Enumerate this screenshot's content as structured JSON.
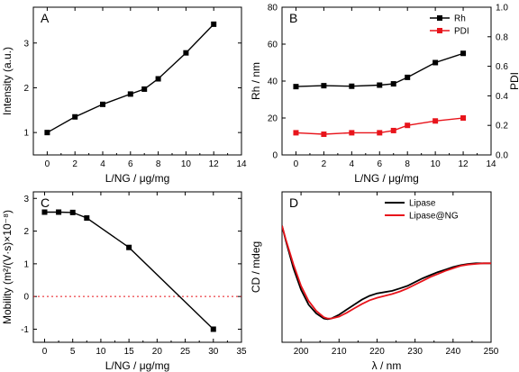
{
  "chart_data": [
    {
      "id": "A",
      "type": "line",
      "panel_label": "A",
      "xlabel": "L/NG / μg/mg",
      "ylabel": "Intensity (a.u.)",
      "xlim": [
        -1,
        14
      ],
      "ylim": [
        0.5,
        3.8
      ],
      "xticks": [
        0,
        2,
        4,
        6,
        8,
        10,
        12,
        14
      ],
      "yticks": [
        1,
        2,
        3
      ],
      "grid": false,
      "series": [
        {
          "name": "",
          "color": "#000000",
          "marker": "square",
          "x": [
            0,
            2,
            4,
            6,
            7,
            8,
            10,
            12
          ],
          "y": [
            1.0,
            1.35,
            1.63,
            1.86,
            1.97,
            2.2,
            2.78,
            3.42
          ]
        }
      ]
    },
    {
      "id": "B",
      "type": "line",
      "panel_label": "B",
      "xlabel": "L/NG / μg/mg",
      "ylabel": "Rh / nm",
      "ylabel_right": "PDI",
      "xlim": [
        -1,
        14
      ],
      "ylim": [
        0,
        80
      ],
      "ylim_right": [
        0,
        1.0
      ],
      "xticks": [
        0,
        2,
        4,
        6,
        8,
        10,
        12,
        14
      ],
      "yticks": [
        0,
        20,
        40,
        60,
        80
      ],
      "yticks_right": [
        0.0,
        0.2,
        0.4,
        0.6,
        0.8,
        1.0
      ],
      "legend_position": "top-right",
      "grid": false,
      "series": [
        {
          "name": "Rh",
          "axis": "left",
          "color": "#000000",
          "marker": "square",
          "x": [
            0,
            2,
            4,
            6,
            7,
            8,
            10,
            12
          ],
          "y": [
            37,
            37.5,
            37.2,
            37.8,
            38.5,
            42,
            50,
            55
          ]
        },
        {
          "name": "PDI",
          "axis": "right",
          "color": "#e8141b",
          "marker": "square",
          "x": [
            0,
            2,
            4,
            6,
            7,
            8,
            10,
            12
          ],
          "y": [
            0.15,
            0.14,
            0.15,
            0.15,
            0.165,
            0.2,
            0.23,
            0.25
          ]
        }
      ]
    },
    {
      "id": "C",
      "type": "line",
      "panel_label": "C",
      "xlabel": "L/NG / μg/mg",
      "ylabel": "Mobility (m²/(V·s)×10⁻⁸)",
      "xlim": [
        -2,
        35
      ],
      "ylim": [
        -1.4,
        3.2
      ],
      "xticks": [
        0,
        5,
        10,
        15,
        20,
        25,
        30,
        35
      ],
      "yticks": [
        -1,
        0,
        1,
        2,
        3
      ],
      "reference_line_y": 0,
      "grid": false,
      "series": [
        {
          "name": "",
          "color": "#000000",
          "marker": "square",
          "x": [
            0,
            2.5,
            5,
            7.5,
            15,
            30
          ],
          "y": [
            2.58,
            2.58,
            2.57,
            2.4,
            1.5,
            -1.0
          ]
        }
      ]
    },
    {
      "id": "D",
      "type": "line",
      "panel_label": "D",
      "xlabel": "λ / nm",
      "ylabel": "CD / mdeg",
      "xlim": [
        195,
        250
      ],
      "xticks": [
        200,
        210,
        220,
        230,
        240,
        250
      ],
      "ylim": [
        -6.5,
        5.5
      ],
      "yticks": [],
      "legend_position": "top-right",
      "grid": false,
      "series": [
        {
          "name": "Lipase",
          "color": "#000000",
          "x": [
            195,
            196,
            198,
            200,
            202,
            204,
            206,
            207,
            208,
            210,
            212,
            214,
            216,
            218,
            220,
            222,
            224,
            226,
            228,
            230,
            232,
            234,
            236,
            238,
            240,
            242,
            244,
            246,
            248,
            250
          ],
          "y": [
            2.8,
            1.6,
            -0.6,
            -2.3,
            -3.5,
            -4.2,
            -4.6,
            -4.65,
            -4.6,
            -4.3,
            -3.9,
            -3.5,
            -3.1,
            -2.8,
            -2.6,
            -2.5,
            -2.4,
            -2.2,
            -2.0,
            -1.7,
            -1.4,
            -1.15,
            -0.9,
            -0.7,
            -0.5,
            -0.35,
            -0.25,
            -0.2,
            -0.2,
            -0.2
          ]
        },
        {
          "name": "Lipase@NG",
          "color": "#e8141b",
          "x": [
            195,
            196,
            198,
            200,
            202,
            204,
            206,
            207,
            208,
            210,
            212,
            214,
            216,
            218,
            220,
            222,
            224,
            226,
            228,
            230,
            232,
            234,
            236,
            238,
            240,
            242,
            244,
            246,
            248,
            250
          ],
          "y": [
            2.8,
            1.7,
            -0.3,
            -2.0,
            -3.2,
            -4.0,
            -4.5,
            -4.6,
            -4.6,
            -4.45,
            -4.15,
            -3.8,
            -3.45,
            -3.15,
            -2.95,
            -2.8,
            -2.65,
            -2.45,
            -2.2,
            -1.9,
            -1.6,
            -1.3,
            -1.05,
            -0.8,
            -0.6,
            -0.4,
            -0.3,
            -0.25,
            -0.2,
            -0.2
          ]
        }
      ]
    }
  ]
}
